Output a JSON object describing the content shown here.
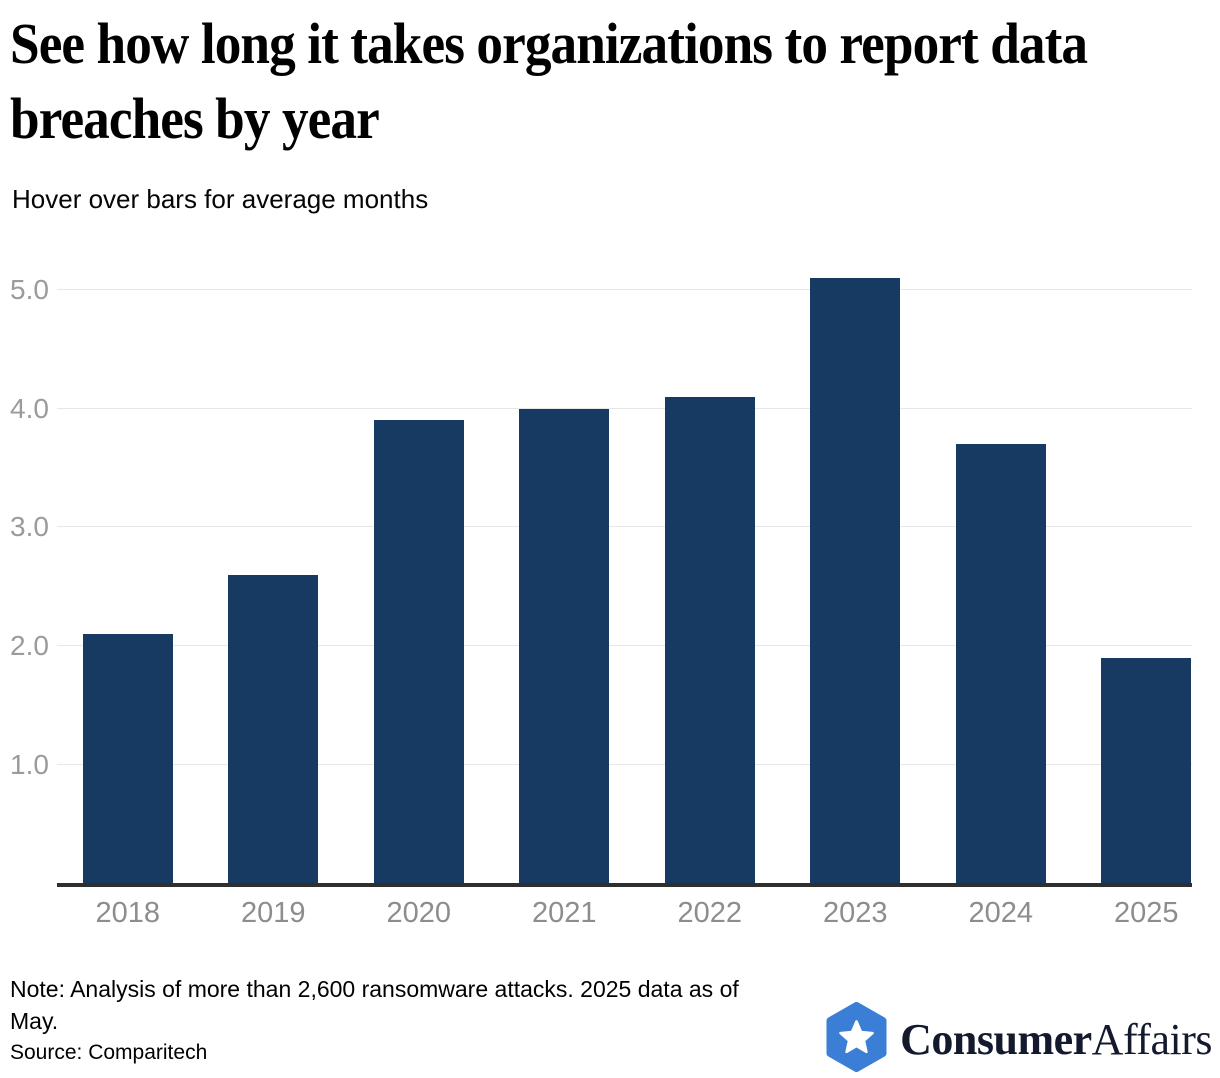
{
  "header": {
    "title": "See how long it takes organizations to report data breaches by year",
    "subtitle": "Hover over bars for average months"
  },
  "chart_data": {
    "type": "bar",
    "title": "See how long it takes organizations to report data breaches by year",
    "subtitle": "Hover over bars for average months",
    "categories": [
      "2018",
      "2019",
      "2020",
      "2021",
      "2022",
      "2023",
      "2024",
      "2025"
    ],
    "values": [
      2.1,
      2.6,
      3.9,
      4.0,
      4.1,
      5.1,
      3.7,
      1.9
    ],
    "series_name": "Average months to report",
    "xlabel": "",
    "ylabel": "",
    "ylim": [
      0,
      5.25
    ],
    "yticks": [
      1.0,
      2.0,
      3.0,
      4.0,
      5.0
    ],
    "ytick_labels": [
      "1.0",
      "2.0",
      "3.0",
      "4.0",
      "5.0"
    ],
    "grid": true,
    "legend": false,
    "bar_color": "#173a62"
  },
  "footer": {
    "note": "Note: Analysis of more than 2,600 ransomware attacks. 2025 data as of May.",
    "source": "Source: Comparitech",
    "logo": {
      "icon": "star-hexagon-icon",
      "brand_bold": "Consumer",
      "brand_regular": "Affairs",
      "icon_color": "#3a7fd5",
      "text_color": "#141a2e"
    }
  },
  "colors": {
    "bar": "#173a62",
    "gridline": "#e7e7e7",
    "axis_line": "#2f2f2f",
    "y_tick_label": "#9b9b9b",
    "x_tick_label": "#8d8d8d",
    "background": "#ffffff"
  }
}
